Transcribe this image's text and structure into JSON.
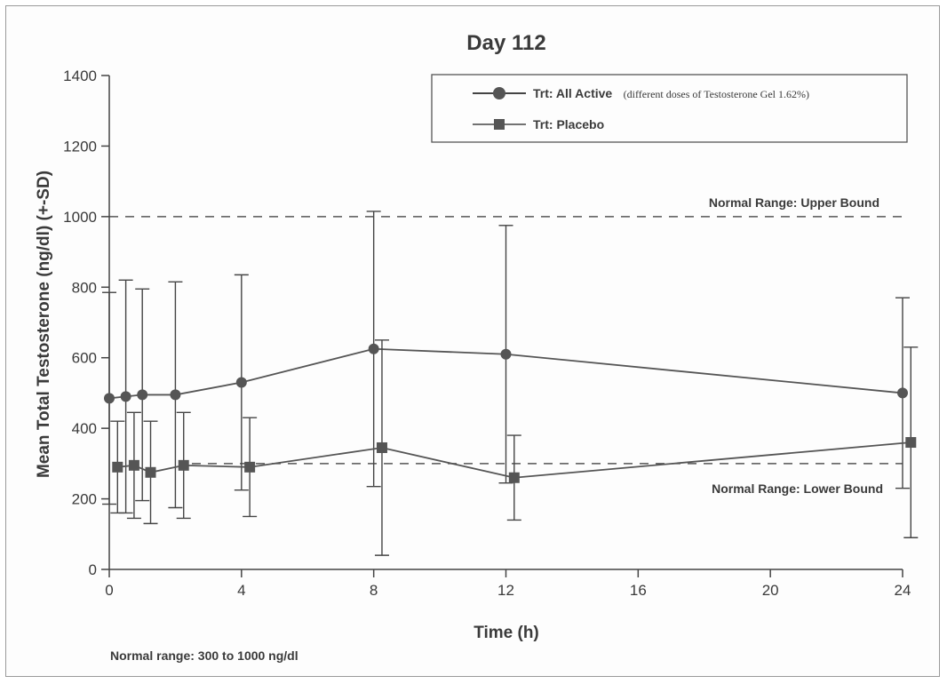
{
  "chart_data": {
    "type": "line",
    "title": "Day 112",
    "xlabel": "Time (h)",
    "ylabel": "Mean Total Testosterone (ng/dl) (+-SD)",
    "xlim": [
      0,
      24
    ],
    "ylim": [
      0,
      1400
    ],
    "xticks": [
      0,
      4,
      8,
      12,
      16,
      20,
      24
    ],
    "yticks": [
      0,
      200,
      400,
      600,
      800,
      1000,
      1200,
      1400
    ],
    "grid": false,
    "legend_position": "top-right",
    "series": [
      {
        "name": "Trt: All Active",
        "name_note": "(different doses of Testosterone Gel 1.62%)",
        "marker": "circle",
        "color": "#555555",
        "x": [
          0,
          0.5,
          1,
          2,
          4,
          8,
          12,
          24
        ],
        "y": [
          485,
          490,
          495,
          495,
          530,
          625,
          610,
          500
        ],
        "sd": [
          300,
          330,
          300,
          320,
          305,
          390,
          365,
          270
        ]
      },
      {
        "name": "Trt: Placebo",
        "marker": "square",
        "color": "#555555",
        "x": [
          0.25,
          0.75,
          1.25,
          2.25,
          4.25,
          8.25,
          12.25,
          24.25
        ],
        "y": [
          290,
          295,
          275,
          295,
          290,
          345,
          260,
          360
        ],
        "sd": [
          130,
          150,
          145,
          150,
          140,
          305,
          120,
          270
        ]
      }
    ],
    "reference_lines": [
      {
        "y": 1000,
        "label": "Normal Range: Upper Bound",
        "style": "dashed"
      },
      {
        "y": 300,
        "label": "Normal Range: Lower Bound",
        "style": "dashed"
      }
    ],
    "footnote": "Normal range: 300 to 1000 ng/dl"
  }
}
